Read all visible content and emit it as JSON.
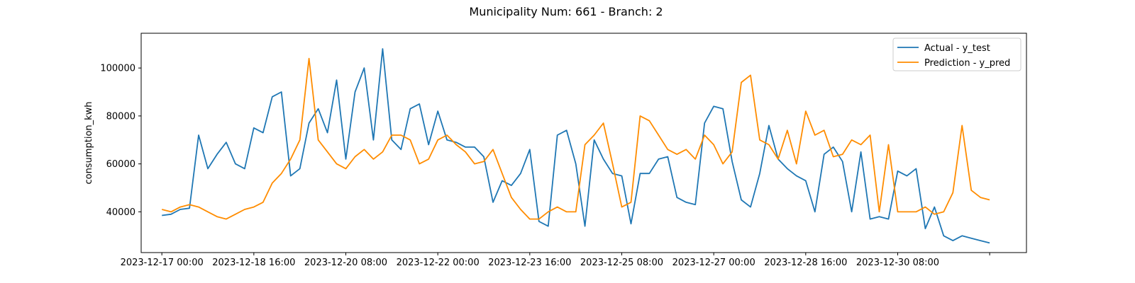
{
  "chart_data": {
    "type": "line",
    "title": "Municipality Num: 661 - Branch: 2",
    "xlabel": "",
    "ylabel": "consumption_kwh",
    "x_ticks": [
      "2023-12-17 00:00",
      "2023-12-18 16:00",
      "2023-12-20 08:00",
      "2023-12-22 00:00",
      "2023-12-23 16:00",
      "2023-12-25 08:00",
      "2023-12-27 00:00",
      "2023-12-28 16:00",
      "2023-12-30 08:00",
      ""
    ],
    "x_tick_hours": [
      0,
      40,
      80,
      120,
      160,
      200,
      240,
      280,
      320,
      360
    ],
    "x_unit": "hours since 2023-12-17 00:00",
    "xlim_hours": [
      -9,
      376
    ],
    "y_ticks": [
      40000,
      60000,
      80000,
      100000
    ],
    "y_tick_labels": [
      "40000",
      "60000",
      "80000",
      "100000"
    ],
    "ylim": [
      23000,
      114500
    ],
    "grid": false,
    "legend_position": "upper right",
    "series": [
      {
        "name": "Actual - y_test",
        "color": "#1f77b4",
        "x": [
          0,
          4,
          8,
          12,
          16,
          20,
          24,
          28,
          32,
          36,
          40,
          44,
          48,
          52,
          56,
          60,
          64,
          68,
          72,
          76,
          80,
          84,
          88,
          92,
          96,
          100,
          104,
          108,
          112,
          116,
          120,
          124,
          128,
          132,
          136,
          140,
          144,
          148,
          152,
          156,
          160,
          164,
          168,
          172,
          176,
          180,
          184,
          188,
          192,
          196,
          200,
          204,
          208,
          212,
          216,
          220,
          224,
          228,
          232,
          236,
          240,
          244,
          248,
          252,
          256,
          260,
          264,
          268,
          272,
          276,
          280,
          284,
          288,
          292,
          296,
          300,
          304,
          308,
          312,
          316,
          320,
          324,
          328,
          332,
          336,
          340,
          344,
          348,
          352,
          356,
          360
        ],
        "values": [
          38500,
          39000,
          41000,
          41500,
          72000,
          58000,
          64000,
          69000,
          60000,
          58000,
          75000,
          73000,
          88000,
          90000,
          55000,
          58000,
          77000,
          83000,
          73000,
          95000,
          62000,
          90000,
          100000,
          70000,
          108000,
          70000,
          66000,
          83000,
          85000,
          68000,
          82000,
          70000,
          69000,
          67000,
          67000,
          63000,
          44000,
          53000,
          51000,
          56000,
          66000,
          36000,
          34000,
          72000,
          74000,
          60000,
          34000,
          70000,
          62000,
          56000,
          55000,
          35000,
          56000,
          56000,
          62000,
          63000,
          46000,
          44000,
          43000,
          77000,
          84000,
          83000,
          61000,
          45000,
          42000,
          56000,
          76000,
          62000,
          58000,
          55000,
          53000,
          40000,
          64000,
          67000,
          61000,
          40000,
          65000,
          37000,
          38000,
          37000,
          57000,
          55000,
          58000,
          33000,
          42000,
          30000,
          28000,
          30000,
          29000,
          28000,
          27000
        ]
      },
      {
        "name": "Prediction - y_pred",
        "color": "#ff8c00",
        "x": [
          0,
          4,
          8,
          12,
          16,
          20,
          24,
          28,
          32,
          36,
          40,
          44,
          48,
          52,
          56,
          60,
          64,
          68,
          72,
          76,
          80,
          84,
          88,
          92,
          96,
          100,
          104,
          108,
          112,
          116,
          120,
          124,
          128,
          132,
          136,
          140,
          144,
          148,
          152,
          156,
          160,
          164,
          168,
          172,
          176,
          180,
          184,
          188,
          192,
          196,
          200,
          204,
          208,
          212,
          216,
          220,
          224,
          228,
          232,
          236,
          240,
          244,
          248,
          252,
          256,
          260,
          264,
          268,
          272,
          276,
          280,
          284,
          288,
          292,
          296,
          300,
          304,
          308,
          312,
          316,
          320,
          324,
          328,
          332,
          336,
          340,
          344,
          348,
          352,
          356,
          360
        ],
        "values": [
          41000,
          40000,
          42000,
          43000,
          42000,
          40000,
          38000,
          37000,
          39000,
          41000,
          42000,
          44000,
          52000,
          56000,
          62000,
          70000,
          104000,
          70000,
          65000,
          60000,
          58000,
          63000,
          66000,
          62000,
          65000,
          72000,
          72000,
          70000,
          60000,
          62000,
          70000,
          72000,
          68000,
          65000,
          60000,
          61000,
          66000,
          56000,
          46000,
          41000,
          37000,
          37000,
          40000,
          42000,
          40000,
          40000,
          68000,
          72000,
          77000,
          60000,
          42000,
          44000,
          80000,
          78000,
          72000,
          66000,
          64000,
          66000,
          62000,
          72000,
          68000,
          60000,
          65000,
          94000,
          97000,
          70000,
          68000,
          62000,
          74000,
          60000,
          82000,
          72000,
          74000,
          63000,
          64000,
          70000,
          68000,
          72000,
          40000,
          68000,
          40000,
          40000,
          40000,
          42000,
          39000,
          40000,
          48000,
          76000,
          49000,
          46000,
          45000
        ]
      }
    ]
  }
}
